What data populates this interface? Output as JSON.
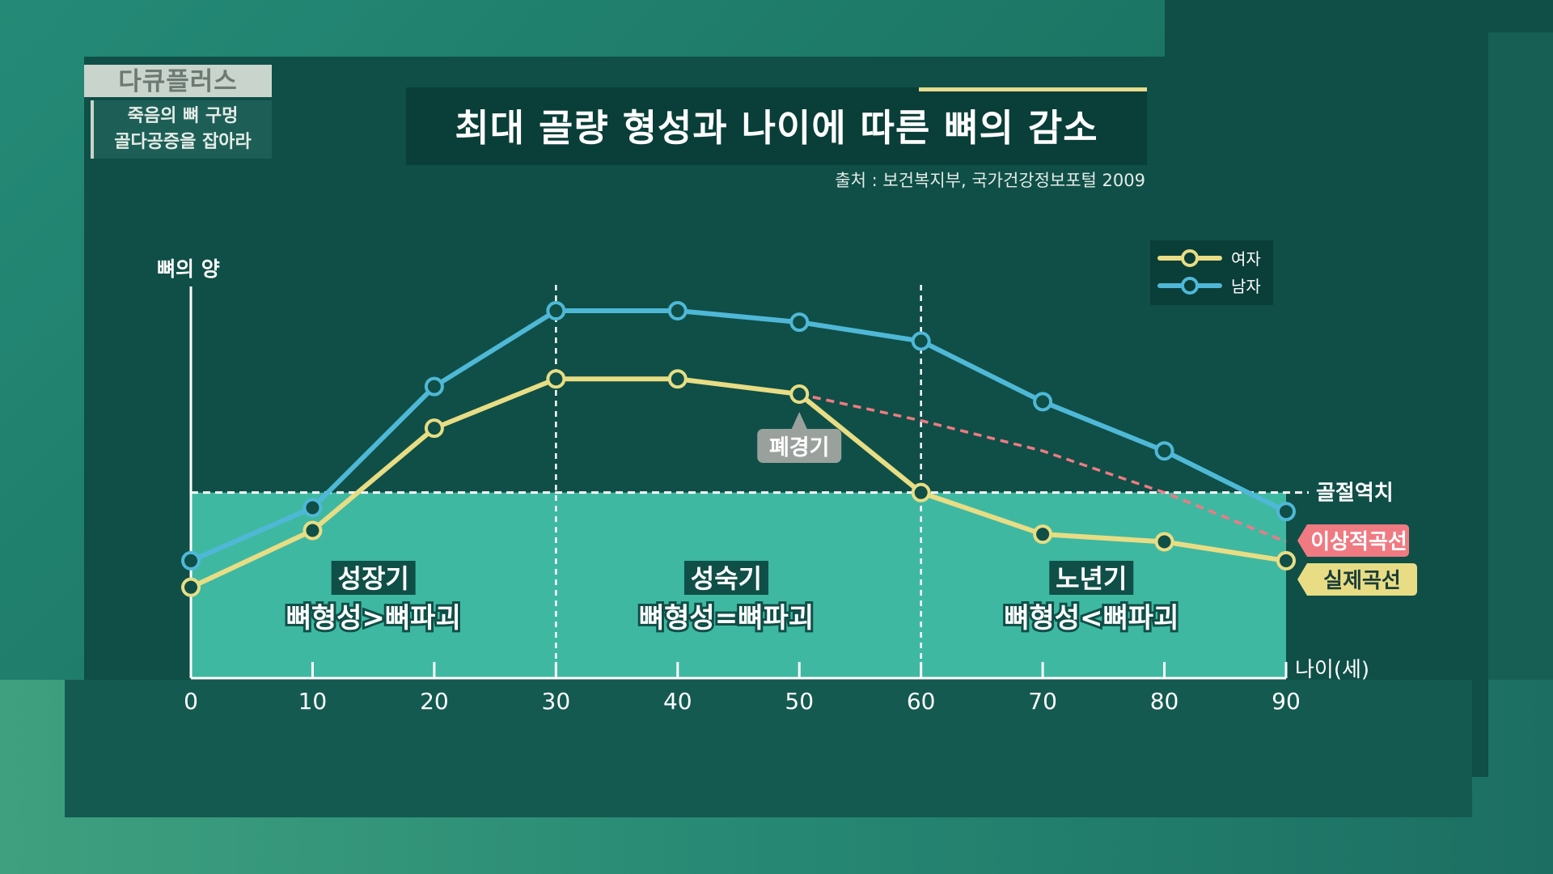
{
  "program": {
    "name": "다큐플러스",
    "subtitle_line1": "죽음의 뼈 구멍",
    "subtitle_line2": "골다공증을 잡아라"
  },
  "chart_data": {
    "type": "line",
    "title": "최대 골량 형성과 나이에 따른 뼈의 감소",
    "source": "출처 : 보건복지부, 국가건강정보포털 2009",
    "xlabel": "나이(세)",
    "ylabel": "뼈의 양",
    "x": [
      0,
      10,
      20,
      30,
      40,
      50,
      60,
      70,
      80,
      90
    ],
    "xlim": [
      0,
      90
    ],
    "ylim": [
      0,
      100
    ],
    "series": [
      {
        "name": "여자",
        "color": "#e8dd84",
        "values": [
          24,
          39,
          66,
          79,
          79,
          75,
          49,
          38,
          36,
          31
        ]
      },
      {
        "name": "남자",
        "color": "#4fb8d7",
        "values": [
          31,
          45,
          77,
          97,
          97,
          94,
          89,
          73,
          60,
          44
        ]
      }
    ],
    "ideal_curve": {
      "label": "이상적곡선",
      "color": "#f07a82",
      "x": [
        50,
        60,
        70,
        80,
        90
      ],
      "values": [
        75,
        68,
        60,
        49,
        36
      ]
    },
    "actual_curve_label": "실제곡선",
    "fracture_threshold": {
      "label": "골절역치",
      "value": 49
    },
    "menopause": {
      "label": "폐경기",
      "x": 50
    },
    "phase_dividers": [
      30,
      60
    ],
    "phases": [
      {
        "name": "성장기",
        "relation": "뼈형성>뼈파괴",
        "center": 15
      },
      {
        "name": "성숙기",
        "relation": "뼈형성=뼈파괴",
        "center": 44
      },
      {
        "name": "노년기",
        "relation": "뼈형성<뼈파괴",
        "center": 74
      }
    ],
    "legend_position": "top-right",
    "threshold_fill_color": "#3fb8a2"
  }
}
